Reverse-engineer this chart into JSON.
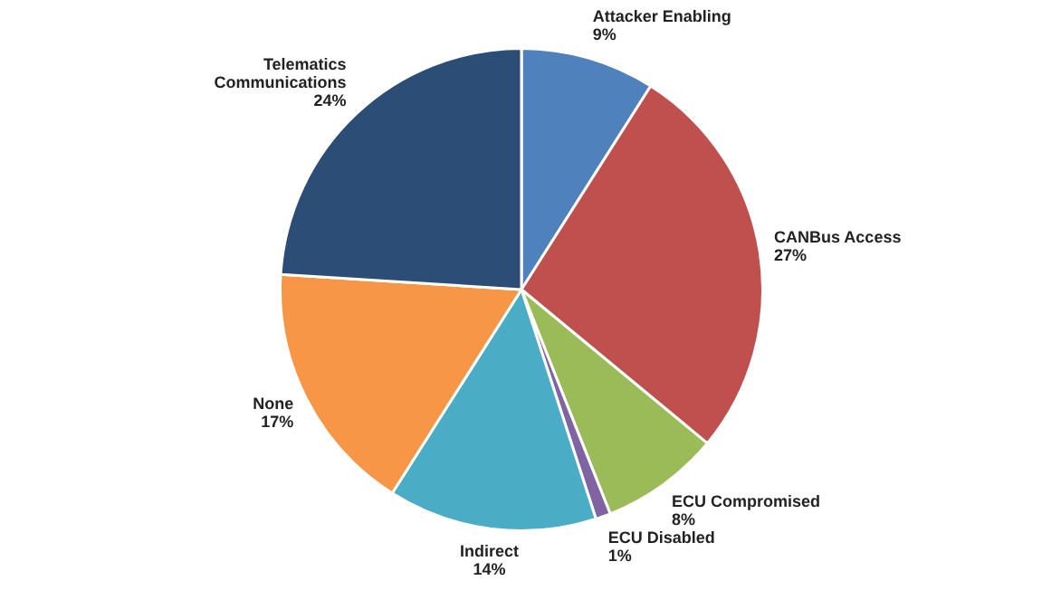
{
  "chart_data": {
    "type": "pie",
    "categories": [
      "Attacker Enabling",
      "CANBus Access",
      "ECU Compromised",
      "ECU Disabled",
      "Indirect",
      "None",
      "Telematics Communications"
    ],
    "values": [
      9,
      27,
      8,
      1,
      14,
      17,
      24
    ],
    "value_labels": [
      "9%",
      "27%",
      "8%",
      "1%",
      "14%",
      "17%",
      "24%"
    ],
    "colors": [
      "#4f81bd",
      "#c0504d",
      "#9bbb59",
      "#8064a2",
      "#4bacc6",
      "#f79646",
      "#2c4d75"
    ],
    "legend": false
  }
}
